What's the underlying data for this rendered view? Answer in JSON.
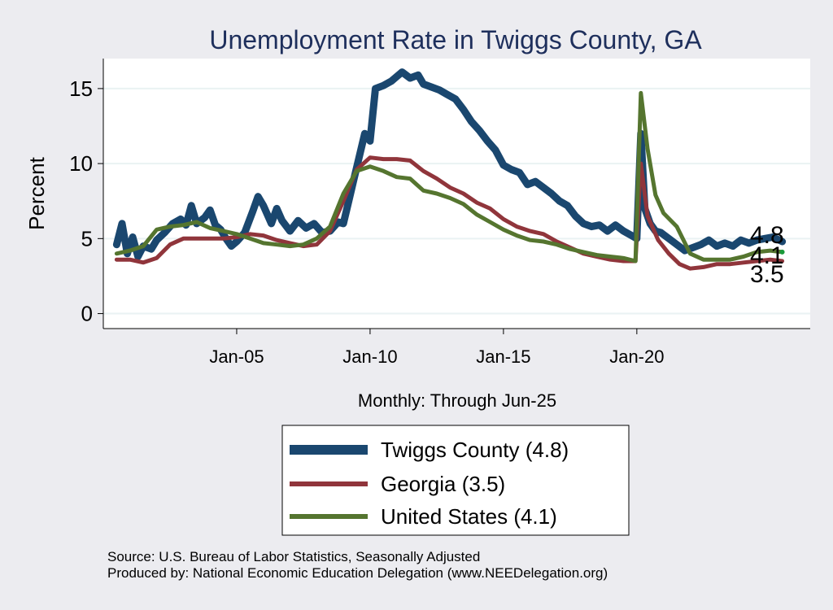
{
  "chart_data": {
    "type": "line",
    "title": "Unemployment Rate in Twiggs  County, GA",
    "xlabel": "Monthly: Through Jun-25",
    "ylabel": "Percent",
    "xlim": [
      2000.0,
      2026.5
    ],
    "ylim": [
      -1,
      17
    ],
    "yticks": [
      0,
      5,
      10,
      15
    ],
    "ytick_labels": [
      "0",
      "5",
      "10",
      "15"
    ],
    "xticks": [
      2005,
      2010,
      2015,
      2020
    ],
    "xtick_labels": [
      "Jan-05",
      "Jan-10",
      "Jan-15",
      "Jan-20"
    ],
    "grid": true,
    "legend_position": "bottom",
    "series": [
      {
        "name": "Twiggs  County (4.8)",
        "color": "#1a476f",
        "end_label": "4.8",
        "points": [
          [
            2000.5,
            4.6
          ],
          [
            2000.7,
            6.0
          ],
          [
            2000.9,
            4.0
          ],
          [
            2001.1,
            5.1
          ],
          [
            2001.3,
            3.8
          ],
          [
            2001.5,
            4.5
          ],
          [
            2001.8,
            4.3
          ],
          [
            2002.0,
            4.9
          ],
          [
            2002.3,
            5.4
          ],
          [
            2002.6,
            6.0
          ],
          [
            2002.9,
            6.3
          ],
          [
            2003.1,
            5.9
          ],
          [
            2003.3,
            7.2
          ],
          [
            2003.5,
            6.0
          ],
          [
            2003.8,
            6.4
          ],
          [
            2004.0,
            6.9
          ],
          [
            2004.2,
            5.9
          ],
          [
            2004.4,
            5.6
          ],
          [
            2004.6,
            5.0
          ],
          [
            2004.8,
            4.5
          ],
          [
            2005.0,
            4.8
          ],
          [
            2005.3,
            5.4
          ],
          [
            2005.6,
            6.8
          ],
          [
            2005.8,
            7.8
          ],
          [
            2006.0,
            7.2
          ],
          [
            2006.3,
            6.0
          ],
          [
            2006.5,
            7.0
          ],
          [
            2006.7,
            6.2
          ],
          [
            2007.0,
            5.5
          ],
          [
            2007.3,
            6.2
          ],
          [
            2007.6,
            5.7
          ],
          [
            2007.9,
            6.0
          ],
          [
            2008.2,
            5.4
          ],
          [
            2008.5,
            5.5
          ],
          [
            2008.8,
            6.1
          ],
          [
            2009.0,
            6.0
          ],
          [
            2009.2,
            7.5
          ],
          [
            2009.4,
            9.0
          ],
          [
            2009.6,
            10.5
          ],
          [
            2009.8,
            12.0
          ],
          [
            2010.0,
            11.5
          ],
          [
            2010.2,
            15.0
          ],
          [
            2010.5,
            15.2
          ],
          [
            2010.8,
            15.5
          ],
          [
            2011.0,
            15.8
          ],
          [
            2011.2,
            16.1
          ],
          [
            2011.5,
            15.7
          ],
          [
            2011.8,
            15.9
          ],
          [
            2012.0,
            15.3
          ],
          [
            2012.3,
            15.1
          ],
          [
            2012.6,
            14.9
          ],
          [
            2012.9,
            14.6
          ],
          [
            2013.2,
            14.3
          ],
          [
            2013.5,
            13.6
          ],
          [
            2013.8,
            12.8
          ],
          [
            2014.1,
            12.2
          ],
          [
            2014.4,
            11.5
          ],
          [
            2014.7,
            10.9
          ],
          [
            2015.0,
            9.9
          ],
          [
            2015.3,
            9.6
          ],
          [
            2015.6,
            9.4
          ],
          [
            2015.9,
            8.6
          ],
          [
            2016.2,
            8.8
          ],
          [
            2016.5,
            8.4
          ],
          [
            2016.8,
            8.0
          ],
          [
            2017.1,
            7.5
          ],
          [
            2017.4,
            7.2
          ],
          [
            2017.7,
            6.5
          ],
          [
            2018.0,
            6.0
          ],
          [
            2018.3,
            5.8
          ],
          [
            2018.6,
            5.9
          ],
          [
            2018.9,
            5.5
          ],
          [
            2019.2,
            5.9
          ],
          [
            2019.5,
            5.5
          ],
          [
            2019.8,
            5.2
          ],
          [
            2020.0,
            5.0
          ],
          [
            2020.15,
            12.0
          ],
          [
            2020.3,
            7.0
          ],
          [
            2020.5,
            6.0
          ],
          [
            2020.7,
            5.5
          ],
          [
            2020.9,
            5.4
          ],
          [
            2021.2,
            5.0
          ],
          [
            2021.5,
            4.6
          ],
          [
            2021.8,
            4.2
          ],
          [
            2022.1,
            4.4
          ],
          [
            2022.4,
            4.6
          ],
          [
            2022.7,
            4.9
          ],
          [
            2023.0,
            4.5
          ],
          [
            2023.3,
            4.7
          ],
          [
            2023.6,
            4.5
          ],
          [
            2023.9,
            4.9
          ],
          [
            2024.2,
            4.7
          ],
          [
            2024.5,
            4.9
          ],
          [
            2024.8,
            5.0
          ],
          [
            2025.1,
            5.1
          ],
          [
            2025.45,
            4.8
          ]
        ]
      },
      {
        "name": "Georgia (3.5)",
        "color": "#90353b",
        "end_label": "3.5",
        "points": [
          [
            2000.5,
            3.6
          ],
          [
            2001.0,
            3.6
          ],
          [
            2001.5,
            3.4
          ],
          [
            2002.0,
            3.7
          ],
          [
            2002.5,
            4.6
          ],
          [
            2003.0,
            5.0
          ],
          [
            2003.5,
            5.0
          ],
          [
            2004.0,
            5.0
          ],
          [
            2004.5,
            5.0
          ],
          [
            2005.0,
            5.1
          ],
          [
            2005.5,
            5.3
          ],
          [
            2006.0,
            5.2
          ],
          [
            2006.5,
            4.9
          ],
          [
            2007.0,
            4.7
          ],
          [
            2007.5,
            4.5
          ],
          [
            2008.0,
            4.6
          ],
          [
            2008.5,
            5.5
          ],
          [
            2009.0,
            7.5
          ],
          [
            2009.5,
            9.6
          ],
          [
            2010.0,
            10.4
          ],
          [
            2010.5,
            10.3
          ],
          [
            2011.0,
            10.3
          ],
          [
            2011.5,
            10.2
          ],
          [
            2012.0,
            9.5
          ],
          [
            2012.5,
            9.0
          ],
          [
            2013.0,
            8.4
          ],
          [
            2013.5,
            8.0
          ],
          [
            2014.0,
            7.4
          ],
          [
            2014.5,
            7.0
          ],
          [
            2015.0,
            6.3
          ],
          [
            2015.5,
            5.8
          ],
          [
            2016.0,
            5.5
          ],
          [
            2016.5,
            5.3
          ],
          [
            2017.0,
            4.8
          ],
          [
            2017.5,
            4.4
          ],
          [
            2018.0,
            4.0
          ],
          [
            2018.5,
            3.8
          ],
          [
            2019.0,
            3.6
          ],
          [
            2019.5,
            3.5
          ],
          [
            2019.95,
            3.5
          ],
          [
            2020.15,
            10.0
          ],
          [
            2020.4,
            6.5
          ],
          [
            2020.8,
            4.9
          ],
          [
            2021.2,
            4.0
          ],
          [
            2021.6,
            3.3
          ],
          [
            2022.0,
            3.0
          ],
          [
            2022.5,
            3.1
          ],
          [
            2023.0,
            3.3
          ],
          [
            2023.5,
            3.3
          ],
          [
            2024.0,
            3.4
          ],
          [
            2024.5,
            3.5
          ],
          [
            2025.0,
            3.6
          ],
          [
            2025.45,
            3.5
          ]
        ]
      },
      {
        "name": "United States (4.1)",
        "color": "#55752f",
        "end_label": "4.1",
        "points": [
          [
            2000.5,
            4.0
          ],
          [
            2001.0,
            4.2
          ],
          [
            2001.5,
            4.5
          ],
          [
            2002.0,
            5.6
          ],
          [
            2002.5,
            5.8
          ],
          [
            2003.0,
            5.9
          ],
          [
            2003.5,
            6.1
          ],
          [
            2004.0,
            5.7
          ],
          [
            2004.5,
            5.5
          ],
          [
            2005.0,
            5.3
          ],
          [
            2005.5,
            5.0
          ],
          [
            2006.0,
            4.7
          ],
          [
            2006.5,
            4.6
          ],
          [
            2007.0,
            4.5
          ],
          [
            2007.5,
            4.6
          ],
          [
            2008.0,
            5.0
          ],
          [
            2008.5,
            5.8
          ],
          [
            2009.0,
            8.0
          ],
          [
            2009.5,
            9.5
          ],
          [
            2010.0,
            9.8
          ],
          [
            2010.5,
            9.5
          ],
          [
            2011.0,
            9.1
          ],
          [
            2011.5,
            9.0
          ],
          [
            2012.0,
            8.2
          ],
          [
            2012.5,
            8.0
          ],
          [
            2013.0,
            7.7
          ],
          [
            2013.5,
            7.3
          ],
          [
            2014.0,
            6.6
          ],
          [
            2014.5,
            6.1
          ],
          [
            2015.0,
            5.6
          ],
          [
            2015.5,
            5.2
          ],
          [
            2016.0,
            4.9
          ],
          [
            2016.5,
            4.8
          ],
          [
            2017.0,
            4.6
          ],
          [
            2017.5,
            4.3
          ],
          [
            2018.0,
            4.1
          ],
          [
            2018.5,
            3.9
          ],
          [
            2019.0,
            3.8
          ],
          [
            2019.5,
            3.7
          ],
          [
            2019.95,
            3.5
          ],
          [
            2020.15,
            14.7
          ],
          [
            2020.4,
            11.0
          ],
          [
            2020.7,
            7.9
          ],
          [
            2021.0,
            6.7
          ],
          [
            2021.5,
            5.8
          ],
          [
            2022.0,
            4.0
          ],
          [
            2022.5,
            3.6
          ],
          [
            2023.0,
            3.6
          ],
          [
            2023.5,
            3.6
          ],
          [
            2024.0,
            3.8
          ],
          [
            2024.5,
            4.1
          ],
          [
            2025.0,
            4.2
          ],
          [
            2025.45,
            4.1
          ]
        ]
      }
    ],
    "source_lines": [
      "Source: U.S. Bureau of Labor Statistics, Seasonally Adjusted",
      "Produced by: National Economic Education Delegation (www.NEEDelegation.org)"
    ]
  }
}
